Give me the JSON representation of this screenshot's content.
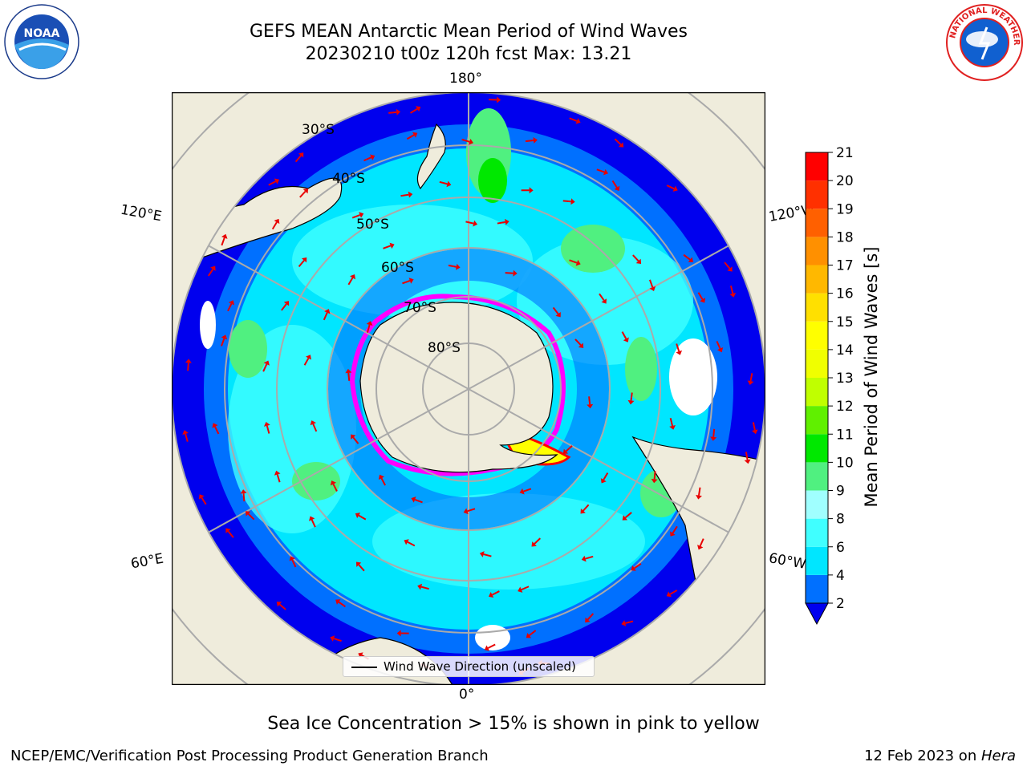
{
  "title": {
    "line1": "GEFS MEAN Antarctic Mean Period of Wind Waves",
    "line2": "20230210 t00z 120h fcst   Max: 13.21"
  },
  "logos": {
    "left": "noaa-logo",
    "right": "nws-logo",
    "left_text": "NOAA",
    "right_text": "NATIONAL WEATHER SERVICE"
  },
  "map": {
    "projection": "south-polar-stereographic",
    "longitude_labels": {
      "top": "180°",
      "bottom": "0°",
      "left_upper": "120°E",
      "left_lower": "60°E",
      "right_upper": "120°W",
      "right_lower": "60°W"
    },
    "latitude_labels": [
      "30°S",
      "40°S",
      "50°S",
      "60°S",
      "70°S",
      "80°S"
    ],
    "colors": {
      "land": "#efecdc",
      "ocean_low": "#0000ee",
      "ocean_mid": "#00e6ff",
      "sea_ice": "#ff00ff",
      "arrow": "#e80000",
      "grid": "#aaaaaa"
    }
  },
  "colorbar": {
    "label": "Mean Period of Wind Waves [s]",
    "ticks": [
      "2",
      "4",
      "6",
      "8",
      "9",
      "10",
      "11",
      "12",
      "13",
      "14",
      "15",
      "16",
      "17",
      "18",
      "19",
      "20",
      "21"
    ],
    "colors": [
      "#0070ff",
      "#00e6ff",
      "#40ffff",
      "#a0ffff",
      "#50f080",
      "#00e800",
      "#60f000",
      "#c0ff00",
      "#f0ff00",
      "#ffff00",
      "#ffe000",
      "#ffb800",
      "#ff9000",
      "#ff6000",
      "#ff3000",
      "#ff0000"
    ],
    "extend_color": "#0000ee"
  },
  "legend": {
    "label": "Wind Wave Direction (unscaled)"
  },
  "caption": "Sea Ice Concentration > 15% is shown in pink to yellow",
  "footer": {
    "left": "NCEP/EMC/Verification Post Processing Product Generation Branch",
    "right_date": "12 Feb 2023 on ",
    "right_machine": "Hera"
  }
}
